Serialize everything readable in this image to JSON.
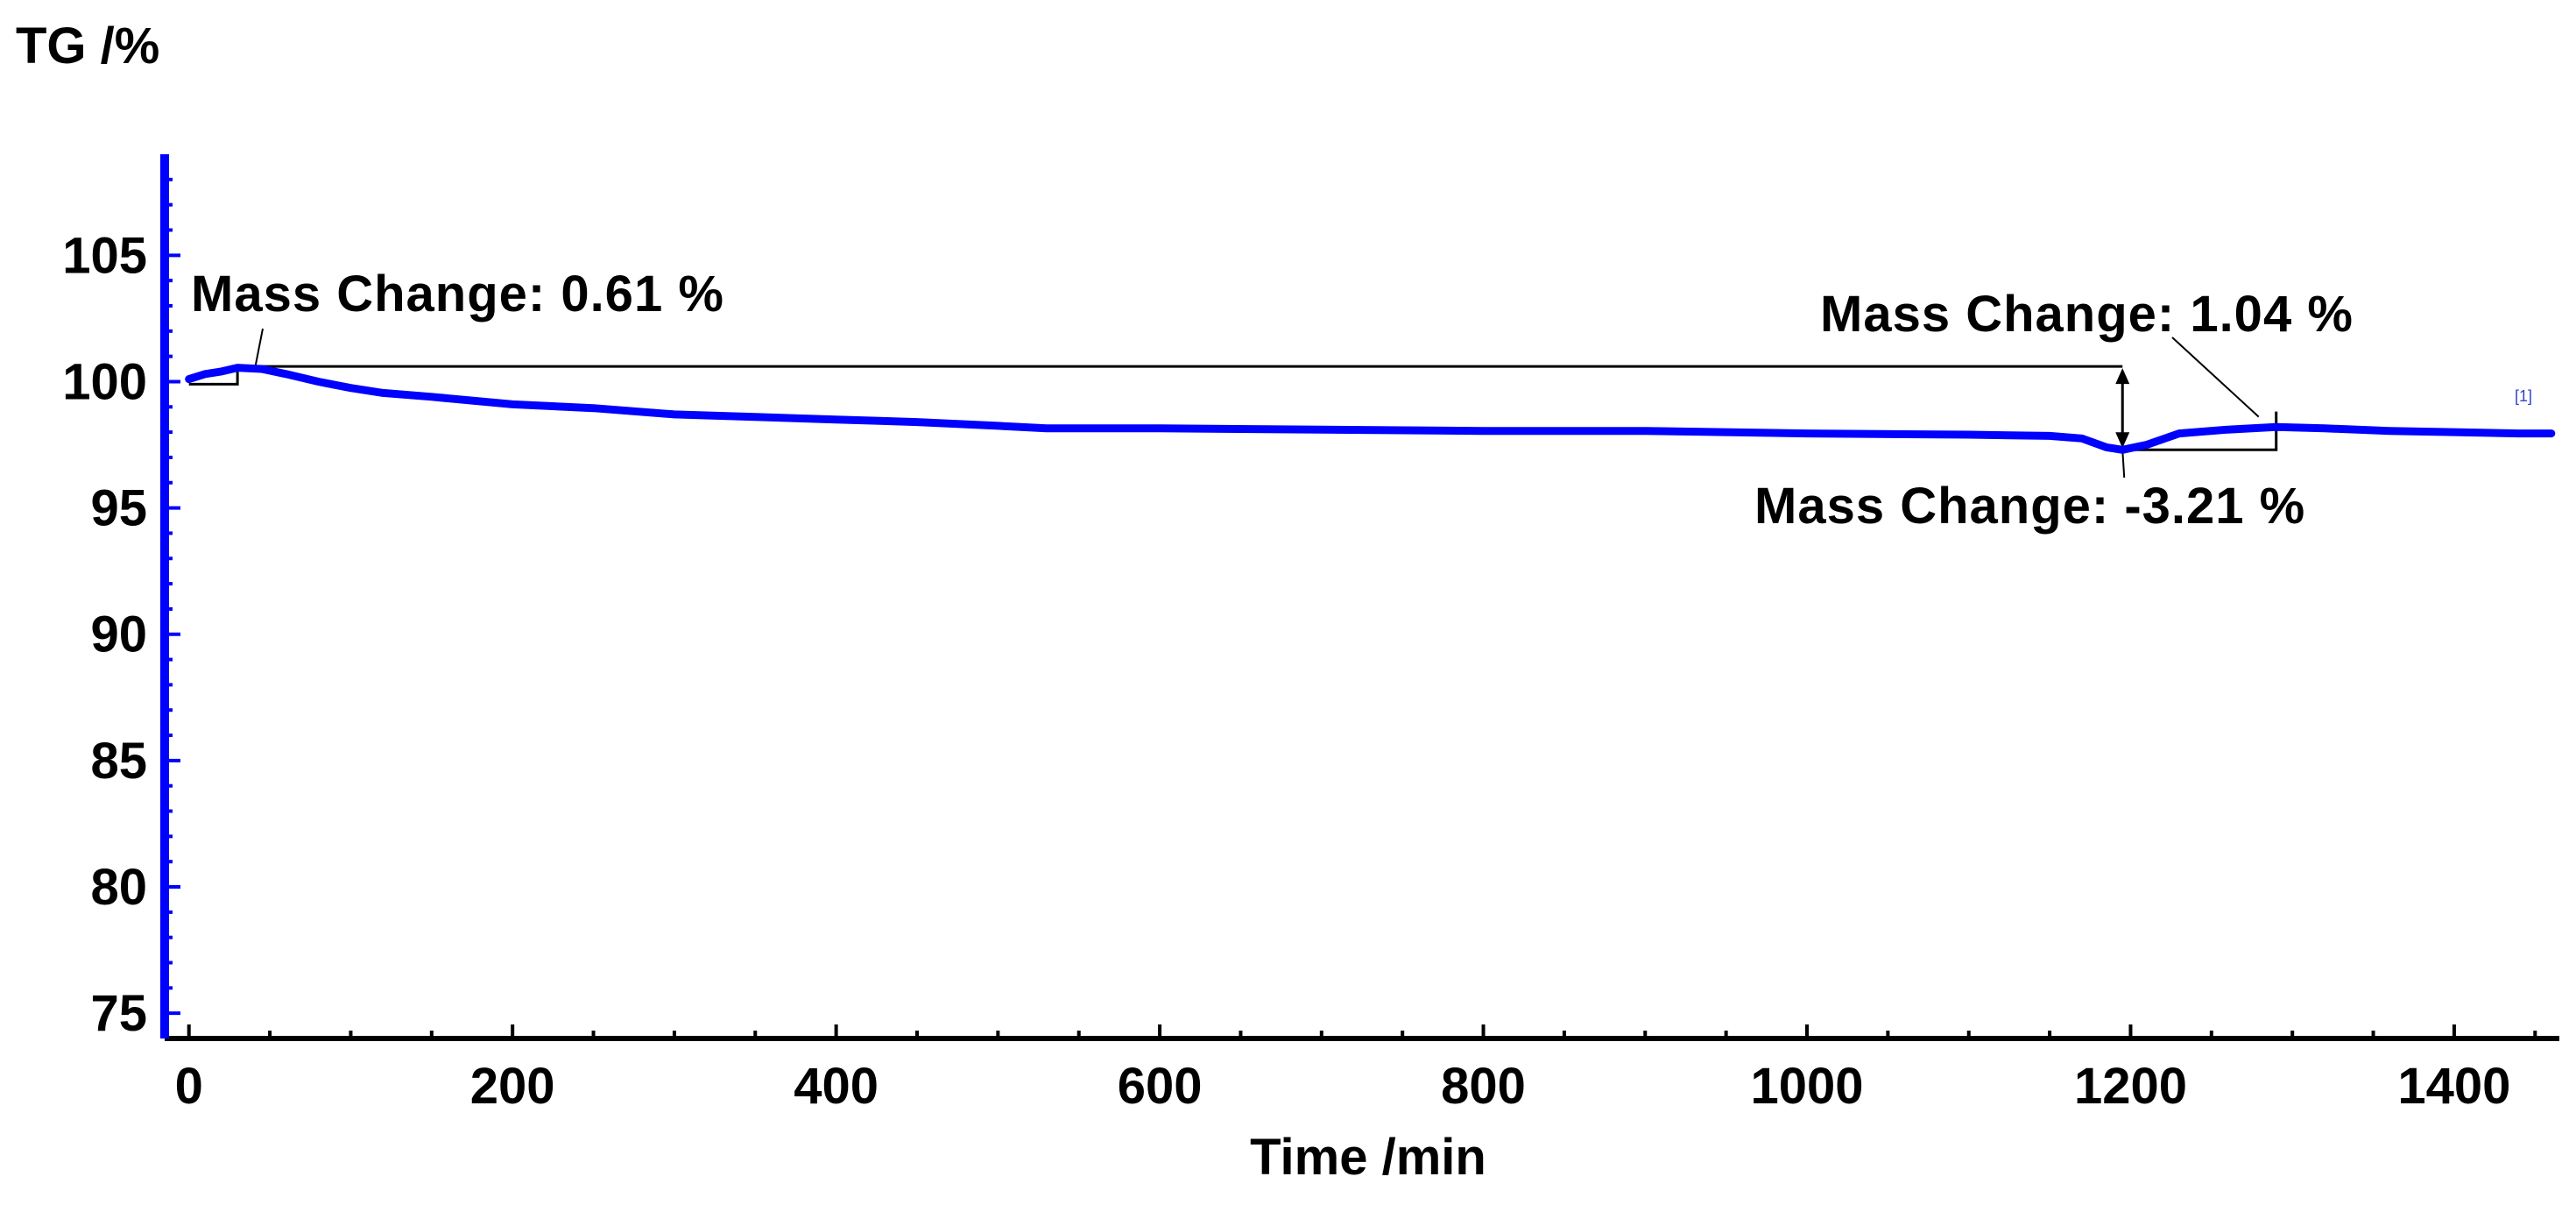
{
  "chart_data": {
    "type": "line",
    "title": "",
    "xlabel": "Time /min",
    "ylabel": "TG /%",
    "xlim": [
      -15,
      1465
    ],
    "ylim": [
      74,
      109
    ],
    "xticks": [
      0,
      200,
      400,
      600,
      800,
      1000,
      1200,
      1400
    ],
    "yticks": [
      75,
      80,
      85,
      90,
      95,
      100,
      105
    ],
    "grid": false,
    "color": "#0000ff",
    "series": [
      {
        "name": "[1]",
        "x": [
          0,
          5,
          10,
          20,
          30,
          45,
          60,
          80,
          100,
          120,
          150,
          200,
          250,
          300,
          350,
          400,
          450,
          500,
          530,
          600,
          700,
          800,
          900,
          1000,
          1100,
          1150,
          1170,
          1185,
          1195,
          1210,
          1230,
          1260,
          1290,
          1320,
          1360,
          1400,
          1440,
          1460
        ],
        "y": [
          100.1,
          100.2,
          100.3,
          100.4,
          100.55,
          100.5,
          100.3,
          100.0,
          99.75,
          99.55,
          99.4,
          99.1,
          98.95,
          98.7,
          98.6,
          98.5,
          98.4,
          98.25,
          98.15,
          98.15,
          98.1,
          98.05,
          98.05,
          97.95,
          97.9,
          97.85,
          97.75,
          97.4,
          97.3,
          97.5,
          97.95,
          98.1,
          98.2,
          98.15,
          98.05,
          98.0,
          97.95,
          97.95
        ]
      }
    ],
    "annotations": [
      {
        "text": "Mass Change: 0.61 %",
        "x_from": 0,
        "x_to": 30,
        "y_from": 99.9,
        "y_to": 100.6
      },
      {
        "text": "Mass Change: -3.21 %",
        "x_at": 1195,
        "y_from": 100.6,
        "y_to": 97.3
      },
      {
        "text": "Mass Change: 1.04 %",
        "x_from": 1195,
        "x_to": 1290,
        "y_from": 97.3,
        "y_to": 98.4
      }
    ]
  }
}
